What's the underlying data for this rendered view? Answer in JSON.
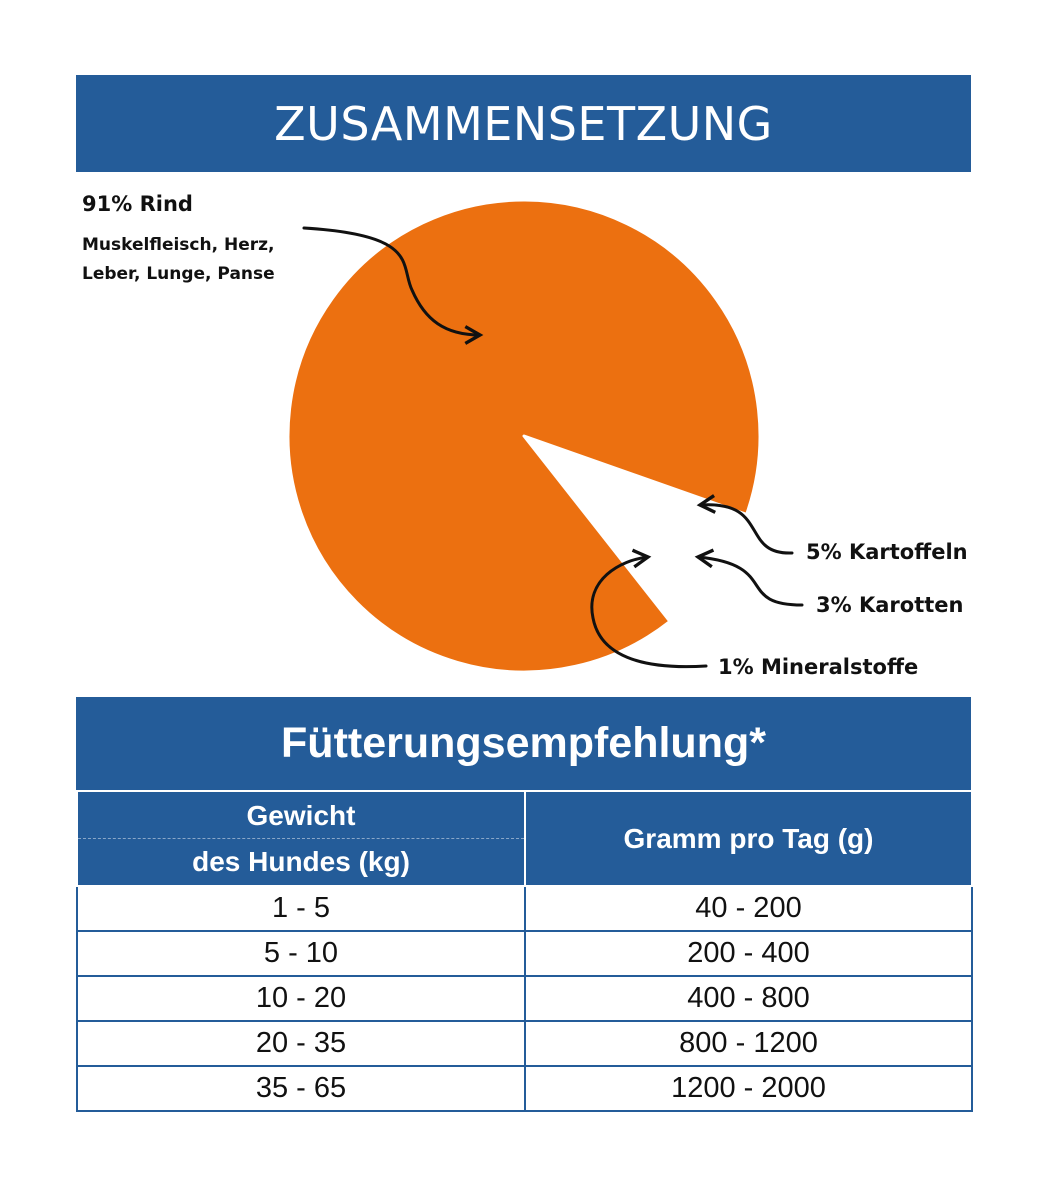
{
  "composition": {
    "title": "ZUSAMMENSETZUNG"
  },
  "chart_data": {
    "type": "pie",
    "slices": [
      {
        "label": "Rind",
        "value": 91,
        "display": "91% Rind",
        "detail": [
          "Muskelfleisch, Herz,",
          "Leber, Lunge, Panse"
        ],
        "color": "#ec7010"
      },
      {
        "label": "Kartoffeln",
        "value": 5,
        "display": "5% Kartoffeln",
        "color": "#e8399a"
      },
      {
        "label": "Karotten",
        "value": 3,
        "display": "3% Karotten",
        "color": "#00b3ad"
      },
      {
        "label": "Mineralstoffe",
        "value": 1,
        "display": "1% Mineralstoffe",
        "color": "#fcd13e"
      }
    ]
  },
  "feeding": {
    "title": "Fütterungsempfehlung*",
    "headers": {
      "weight_line1": "Gewicht",
      "weight_line2": "des Hundes (kg)",
      "grams": "Gramm pro Tag (g)"
    },
    "rows": [
      {
        "weight": "1 - 5",
        "grams": "40 - 200"
      },
      {
        "weight": "5 - 10",
        "grams": "200 - 400"
      },
      {
        "weight": "10 - 20",
        "grams": "400 - 800"
      },
      {
        "weight": "20 - 35",
        "grams": "800 - 1200"
      },
      {
        "weight": "35 - 65",
        "grams": "1200 - 2000"
      }
    ]
  },
  "colors": {
    "header_blue": "#245c99",
    "text": "#111111"
  }
}
